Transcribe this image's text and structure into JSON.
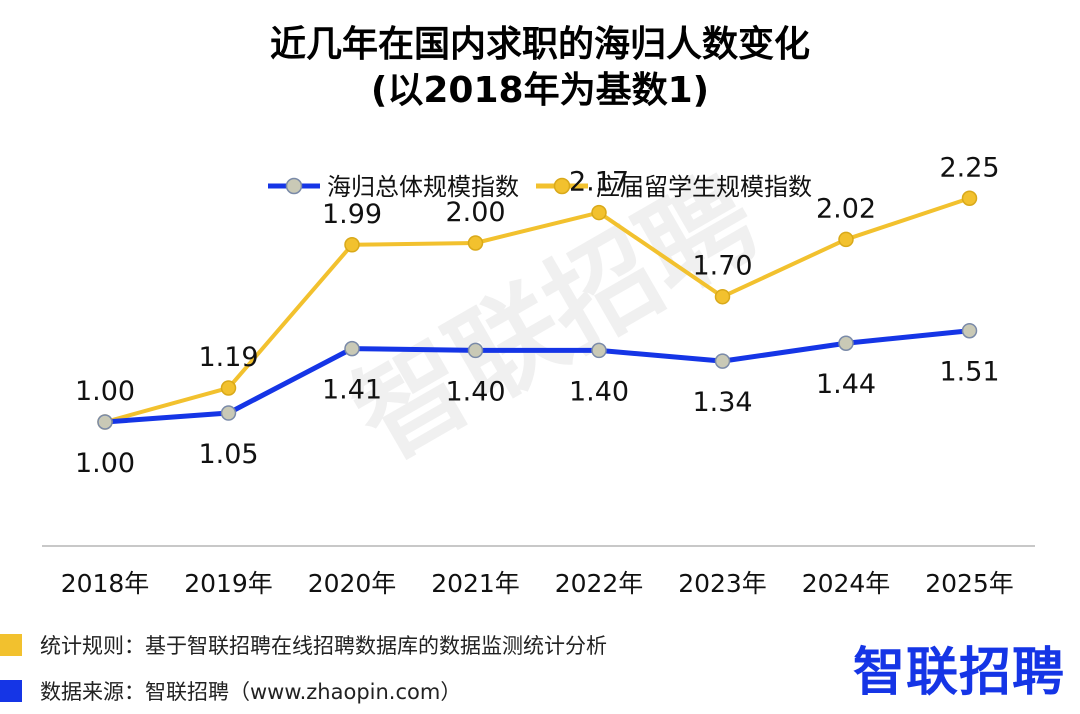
{
  "chart_data": {
    "type": "line",
    "title": [
      "近几年在国内求职的海归人数变化",
      "(以2018年为基数1)"
    ],
    "categories": [
      "2018年",
      "2019年",
      "2020年",
      "2021年",
      "2022年",
      "2023年",
      "2024年",
      "2025年"
    ],
    "series": [
      {
        "name": "海归总体规模指数",
        "color": "#1535e6",
        "values": [
          1.0,
          1.05,
          1.41,
          1.4,
          1.4,
          1.34,
          1.44,
          1.51
        ],
        "labels": [
          "1.00",
          "1.05",
          "1.41",
          "1.40",
          "1.40",
          "1.34",
          "1.44",
          "1.51"
        ],
        "label_position": "below"
      },
      {
        "name": "应届留学生规模指数",
        "color": "#f2c12e",
        "values": [
          1.0,
          1.19,
          1.99,
          2.0,
          2.17,
          1.7,
          2.02,
          2.25
        ],
        "labels": [
          "1.00",
          "1.19",
          "1.99",
          "2.00",
          "2.17",
          "1.70",
          "2.02",
          "2.25"
        ],
        "label_position": "above"
      }
    ],
    "ylim": [
      0.0,
      2.6
    ],
    "grid": false,
    "legend_position": "top-center"
  },
  "footer": {
    "rule": "统计规则：基于智联招聘在线招聘数据库的数据监测统计分析",
    "source": "数据来源：智联招聘（www.zhaopin.com）"
  },
  "logo": {
    "text": "智联招聘"
  },
  "watermark": {
    "text": "智联招聘"
  },
  "colors": {
    "blue": "#1535e6",
    "gold": "#f2c12e"
  }
}
